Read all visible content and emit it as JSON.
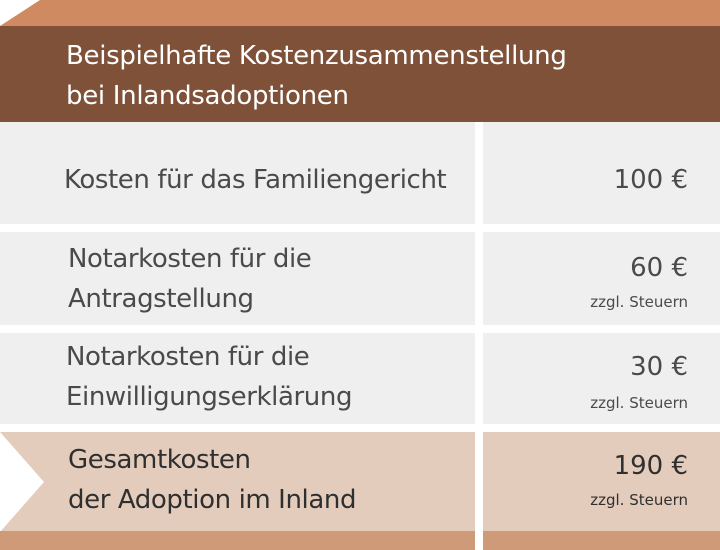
{
  "header": {
    "title_line1": "Beispielhafte Kostenzusammenstellung",
    "title_line2": "bei Inlandsadoptionen"
  },
  "rows": [
    {
      "label_line1": "Kosten für das Familiengericht",
      "label_line2": "",
      "amount": "100 €",
      "note": ""
    },
    {
      "label_line1": "Notarkosten für die",
      "label_line2": "Antragstellung",
      "amount": "60 €",
      "note": "zzgl. Steuern"
    },
    {
      "label_line1": "Notarkosten für die",
      "label_line2": "Einwilligungserklärung",
      "amount": "30 €",
      "note": "zzgl. Steuern"
    }
  ],
  "total": {
    "label_line1": "Gesamtkosten",
    "label_line2": "der Adoption im Inland",
    "amount": "190 €",
    "note": "zzgl. Steuern"
  },
  "colors": {
    "header_bg": "#7e5138",
    "top_band": "#cf8a61",
    "row_bg": "#efefef",
    "total_bg": "#e4ccbc",
    "bottom_band": "#cf9a78"
  }
}
